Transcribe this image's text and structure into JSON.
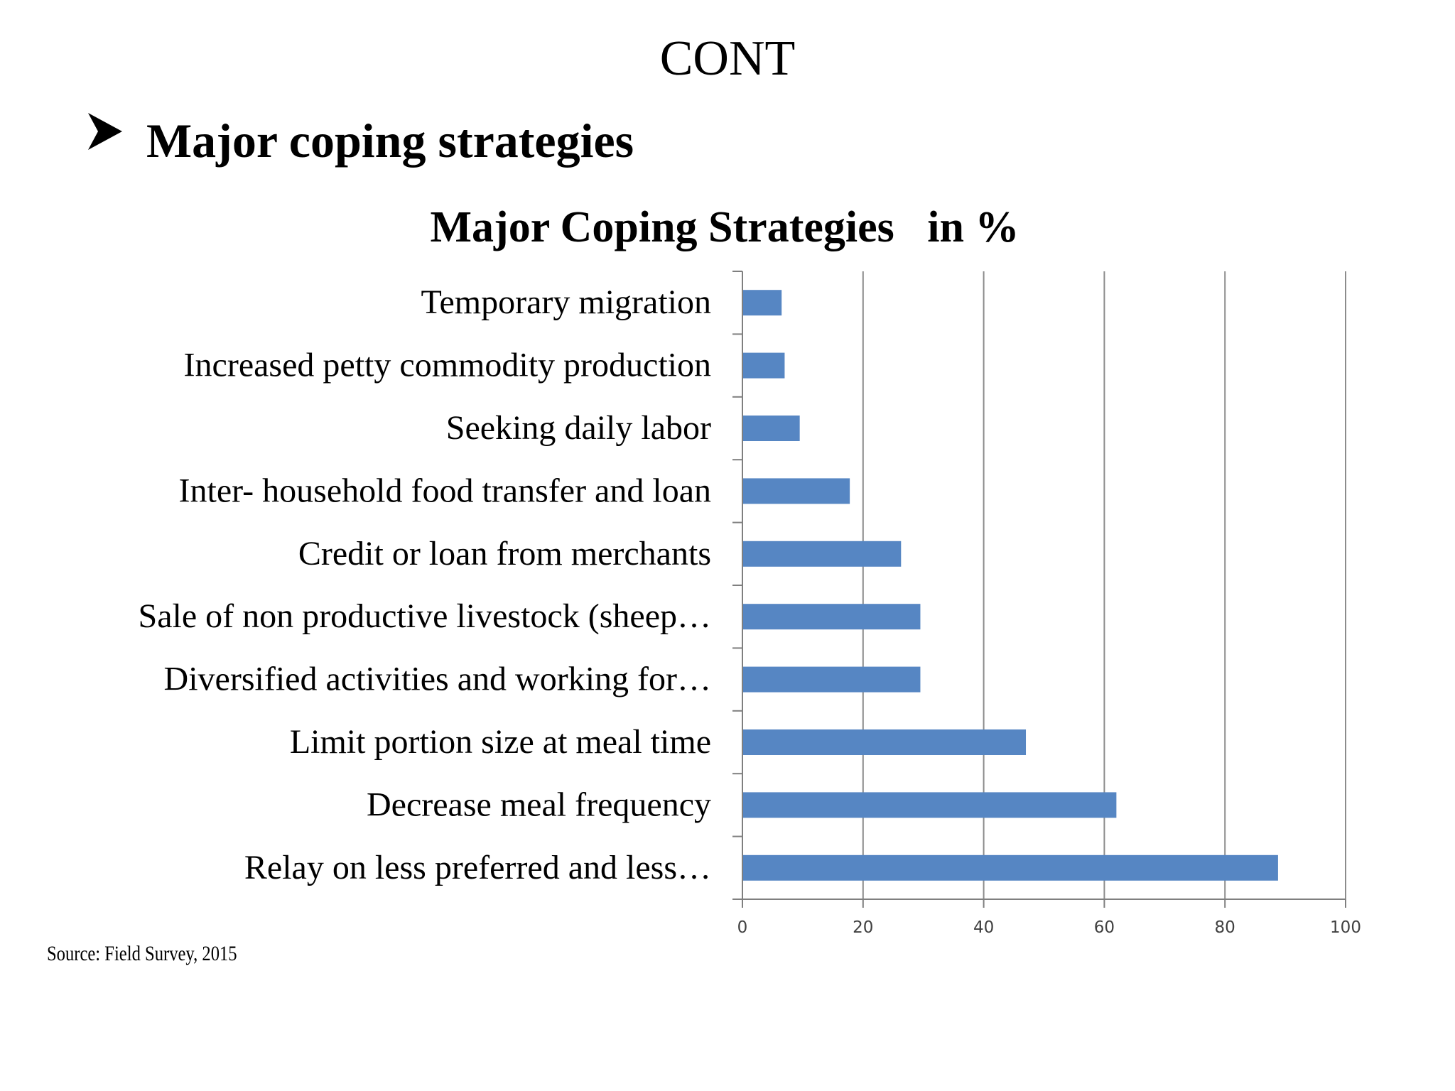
{
  "slide": {
    "heading": "CONT",
    "bullet": "Major coping strategies",
    "source": "Source: Field Survey, 2015"
  },
  "icons": {
    "bullet": "arrow-bullet-icon"
  },
  "colors": {
    "bar": "#5686c3",
    "grid": "#8c8c8c",
    "axis": "#7f7f7f"
  },
  "chart_data": {
    "type": "bar",
    "orientation": "horizontal",
    "title": "Major Coping Strategies   in %",
    "xlabel": "",
    "ylabel": "",
    "xlim": [
      0,
      100
    ],
    "xticks": [
      0,
      20,
      40,
      60,
      80,
      100
    ],
    "grid": true,
    "legend": "none",
    "categories": [
      "Temporary migration",
      "Increased petty commodity production",
      "Seeking daily labor",
      "Inter- household food transfer and loan",
      "Credit or loan from merchants",
      "Sale of non productive livestock (sheep…",
      "Diversified activities and working for…",
      "Limit portion size at meal time",
      "Decrease meal frequency",
      "Relay on less preferred and less…"
    ],
    "values": [
      6.5,
      7,
      9.5,
      17.8,
      26.3,
      29.5,
      29.5,
      47,
      62,
      88.8
    ]
  }
}
